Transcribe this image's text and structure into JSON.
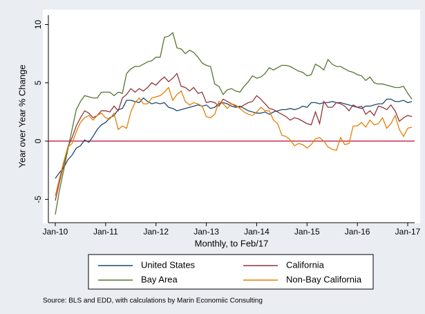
{
  "chart_data": {
    "type": "line",
    "y_label": "Year over Year % Change",
    "x_label": "Monthly, to Feb/17",
    "source": "Source: BLS and EDD, with calculations by Marin Economiic Consulting",
    "categories": [
      "Jan-10",
      null,
      null,
      null,
      null,
      null,
      null,
      null,
      null,
      null,
      null,
      null,
      "Jan-11",
      null,
      null,
      null,
      null,
      null,
      null,
      null,
      null,
      null,
      null,
      null,
      "Jan-12",
      null,
      null,
      null,
      null,
      null,
      null,
      null,
      null,
      null,
      null,
      null,
      "Jan-13",
      null,
      null,
      null,
      null,
      null,
      null,
      null,
      null,
      null,
      null,
      null,
      "Jan-14",
      null,
      null,
      null,
      null,
      null,
      null,
      null,
      null,
      null,
      null,
      null,
      "Jan-15",
      null,
      null,
      null,
      null,
      null,
      null,
      null,
      null,
      null,
      null,
      null,
      "Jan-16",
      null,
      null,
      null,
      null,
      null,
      null,
      null,
      null,
      null,
      null,
      null,
      "Jan-17",
      null
    ],
    "series": [
      {
        "name": "United States",
        "color": "#1a476f",
        "values": [
          -3.2,
          -2.7,
          -2.3,
          -1.6,
          -1.2,
          -0.6,
          -0.4,
          0.1,
          -0.1,
          0.4,
          1.0,
          1.4,
          1.6,
          2.0,
          2.2,
          2.7,
          2.8,
          3.5,
          3.5,
          3.4,
          3.3,
          3.7,
          3.4,
          3.2,
          3.3,
          3.2,
          3.3,
          2.9,
          2.8,
          2.6,
          2.7,
          2.8,
          2.9,
          3.0,
          3.1,
          3.0,
          3.1,
          2.8,
          2.9,
          3.2,
          3.3,
          3.2,
          3.0,
          2.9,
          3.0,
          2.8,
          2.6,
          2.5,
          2.4,
          2.4,
          2.5,
          2.3,
          2.5,
          2.6,
          2.7,
          2.7,
          2.8,
          2.7,
          2.8,
          3.0,
          2.9,
          3.3,
          3.3,
          3.2,
          3.3,
          3.3,
          3.4,
          3.3,
          3.3,
          3.2,
          3.1,
          3.0,
          2.9,
          2.8,
          3.0,
          3.0,
          3.1,
          3.2,
          3.2,
          3.6,
          3.6,
          3.4,
          3.4,
          3.5,
          3.3,
          3.4
        ]
      },
      {
        "name": "California",
        "color": "#90353b",
        "values": [
          -5.1,
          -3.5,
          -2.0,
          -0.5,
          0.3,
          1.3,
          2.0,
          2.6,
          2.4,
          2.0,
          2.2,
          2.6,
          2.6,
          2.5,
          3.0,
          2.6,
          3.7,
          4.0,
          4.5,
          4.2,
          4.5,
          4.3,
          4.6,
          5.0,
          4.8,
          5.2,
          5.5,
          5.1,
          5.4,
          5.8,
          4.7,
          4.6,
          4.3,
          4.6,
          4.1,
          4.2,
          3.3,
          3.4,
          3.3,
          3.0,
          3.6,
          3.4,
          3.2,
          3.0,
          2.9,
          3.1,
          3.3,
          3.4,
          3.9,
          3.6,
          3.2,
          2.8,
          2.7,
          2.5,
          2.3,
          2.1,
          1.8,
          2.0,
          1.9,
          1.7,
          1.5,
          1.4,
          2.5,
          1.5,
          3.4,
          2.9,
          2.9,
          3.3,
          3.2,
          3.0,
          2.6,
          3.1,
          2.9,
          3.0,
          2.3,
          2.6,
          2.2,
          3.0,
          2.9,
          2.7,
          3.1,
          2.6,
          1.7,
          2.0,
          2.2,
          2.1
        ]
      },
      {
        "name": "Bay Area",
        "color": "#55752f",
        "values": [
          -6.3,
          -4.2,
          -2.5,
          -0.7,
          1.0,
          2.7,
          3.4,
          3.9,
          3.8,
          3.7,
          3.7,
          4.2,
          4.2,
          4.2,
          3.9,
          4.2,
          4.1,
          5.8,
          6.2,
          6.4,
          6.4,
          6.6,
          6.8,
          6.9,
          7.2,
          7.2,
          8.9,
          9.0,
          9.3,
          8.0,
          7.9,
          7.5,
          7.8,
          7.6,
          7.2,
          6.7,
          6.5,
          6.4,
          4.9,
          4.7,
          4.0,
          4.4,
          4.5,
          4.3,
          4.2,
          4.7,
          5.1,
          5.6,
          5.4,
          5.5,
          5.8,
          6.3,
          6.1,
          6.3,
          6.5,
          6.5,
          6.4,
          6.2,
          6.0,
          5.9,
          5.6,
          5.7,
          6.6,
          6.4,
          6.1,
          7.0,
          6.6,
          6.4,
          6.4,
          6.2,
          6.0,
          5.9,
          5.7,
          5.6,
          5.2,
          5.5,
          5.0,
          4.9,
          4.9,
          4.8,
          4.7,
          4.6,
          4.6,
          4.7,
          4.1,
          3.6
        ]
      },
      {
        "name": "Non-Bay California",
        "color": "#e37e00",
        "values": [
          -4.7,
          -3.2,
          -1.8,
          -0.5,
          -0.2,
          0.8,
          1.6,
          2.0,
          2.2,
          1.8,
          2.2,
          2.4,
          2.0,
          1.9,
          2.4,
          1.0,
          1.3,
          1.1,
          2.5,
          3.3,
          3.7,
          3.2,
          3.2,
          3.7,
          3.8,
          3.9,
          4.2,
          4.6,
          3.5,
          4.0,
          4.3,
          3.4,
          3.1,
          3.3,
          3.2,
          3.0,
          2.1,
          2.0,
          2.3,
          3.4,
          3.2,
          2.8,
          3.2,
          3.1,
          2.8,
          2.5,
          2.3,
          2.2,
          2.5,
          2.9,
          2.6,
          2.6,
          1.8,
          1.5,
          0.5,
          0.4,
          0.1,
          -0.4,
          -0.2,
          -0.3,
          -0.6,
          -0.3,
          0.2,
          0.3,
          0.0,
          -0.5,
          -0.7,
          -0.8,
          0.3,
          -0.3,
          -0.2,
          1.3,
          1.3,
          1.6,
          1.2,
          1.8,
          1.4,
          1.5,
          2.0,
          1.1,
          1.5,
          2.2,
          1.0,
          0.4,
          1.1,
          1.2
        ]
      }
    ],
    "ylim": [
      -7,
      10.8
    ],
    "yticks": [
      -5,
      0,
      5,
      10
    ],
    "reference_line": {
      "value": 0,
      "color": "#c10534"
    },
    "legend": "bottom",
    "grid": false
  }
}
